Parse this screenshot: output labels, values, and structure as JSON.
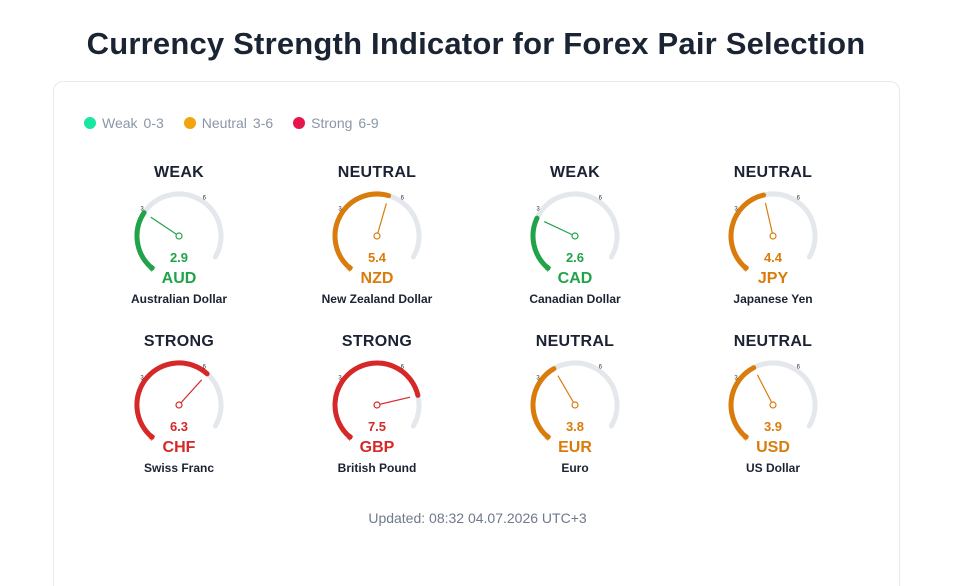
{
  "title": "Currency Strength Indicator for Forex Pair Selection",
  "legend": [
    {
      "label": "Weak",
      "range": "0-3",
      "color": "#19e6a0"
    },
    {
      "label": "Neutral",
      "range": "3-6",
      "color": "#f2a40c"
    },
    {
      "label": "Strong",
      "range": "6-9",
      "color": "#e8154d"
    }
  ],
  "scale": {
    "min": 0,
    "max": 9,
    "tick_labels": [
      "3",
      "6"
    ]
  },
  "status_colors": {
    "WEAK": "#21a34a",
    "NEUTRAL": "#d97c0b",
    "STRONG": "#d62828"
  },
  "track_color": "#e4e7ec",
  "gauges": [
    {
      "status": "WEAK",
      "value": "2.9",
      "code": "AUD",
      "name": "Australian Dollar"
    },
    {
      "status": "NEUTRAL",
      "value": "5.4",
      "code": "NZD",
      "name": "New Zealand Dollar"
    },
    {
      "status": "WEAK",
      "value": "2.6",
      "code": "CAD",
      "name": "Canadian Dollar"
    },
    {
      "status": "NEUTRAL",
      "value": "4.4",
      "code": "JPY",
      "name": "Japanese Yen"
    },
    {
      "status": "STRONG",
      "value": "6.3",
      "code": "CHF",
      "name": "Swiss Franc"
    },
    {
      "status": "STRONG",
      "value": "7.5",
      "code": "GBP",
      "name": "British Pound"
    },
    {
      "status": "NEUTRAL",
      "value": "3.8",
      "code": "EUR",
      "name": "Euro"
    },
    {
      "status": "NEUTRAL",
      "value": "3.9",
      "code": "USD",
      "name": "US Dollar"
    }
  ],
  "updated": "Updated: 08:32 04.07.2026 UTC+3"
}
